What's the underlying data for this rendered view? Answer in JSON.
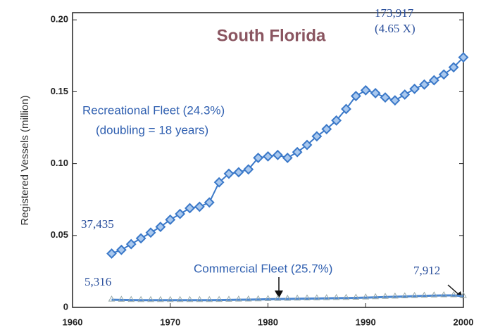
{
  "chart_data": {
    "type": "line",
    "title": "South Florida",
    "y_label": "Registered Vessels (million)",
    "x": [
      1964,
      1965,
      1966,
      1967,
      1968,
      1969,
      1970,
      1971,
      1972,
      1973,
      1974,
      1975,
      1976,
      1977,
      1978,
      1979,
      1980,
      1981,
      1982,
      1983,
      1984,
      1985,
      1986,
      1987,
      1988,
      1989,
      1990,
      1991,
      1992,
      1993,
      1994,
      1995,
      1996,
      1997,
      1998,
      1999,
      2000
    ],
    "series": [
      {
        "name": "Recreational Fleet (24.3%)",
        "color": "#3a78c8",
        "values": [
          0.037435,
          0.04,
          0.044,
          0.048,
          0.052,
          0.056,
          0.061,
          0.065,
          0.069,
          0.07,
          0.073,
          0.087,
          0.093,
          0.094,
          0.096,
          0.104,
          0.105,
          0.106,
          0.104,
          0.108,
          0.113,
          0.119,
          0.124,
          0.13,
          0.138,
          0.147,
          0.151,
          0.149,
          0.146,
          0.144,
          0.148,
          0.152,
          0.155,
          0.158,
          0.162,
          0.167,
          0.173917
        ]
      },
      {
        "name": "Commercial Fleet (25.7%)",
        "color": "#4a86d0",
        "values": [
          0.005316,
          0.0052,
          0.0051,
          0.005,
          0.005,
          0.005,
          0.005,
          0.005,
          0.005,
          0.005,
          0.005,
          0.0051,
          0.0052,
          0.0053,
          0.0054,
          0.0055,
          0.0057,
          0.0058,
          0.0059,
          0.006,
          0.0061,
          0.0062,
          0.0063,
          0.0064,
          0.0065,
          0.0066,
          0.0068,
          0.007,
          0.0072,
          0.0074,
          0.0076,
          0.0078,
          0.008,
          0.0082,
          0.0083,
          0.0083,
          0.007912
        ]
      }
    ],
    "annotations": [
      "(doubling = 18 years)",
      "37,435",
      "5,316",
      "173,917",
      "(4.65 X)",
      "7,912"
    ],
    "xlim": [
      1960,
      2000
    ],
    "xticks": [
      1960,
      1970,
      1980,
      1990,
      2000
    ],
    "ylim": [
      0,
      0.205
    ],
    "yticks": [
      0,
      0.05,
      {
        "value": 0.1,
        "label": "0.10"
      },
      0.15,
      {
        "value": 0.2,
        "label": "0.20"
      }
    ],
    "grid": false
  }
}
